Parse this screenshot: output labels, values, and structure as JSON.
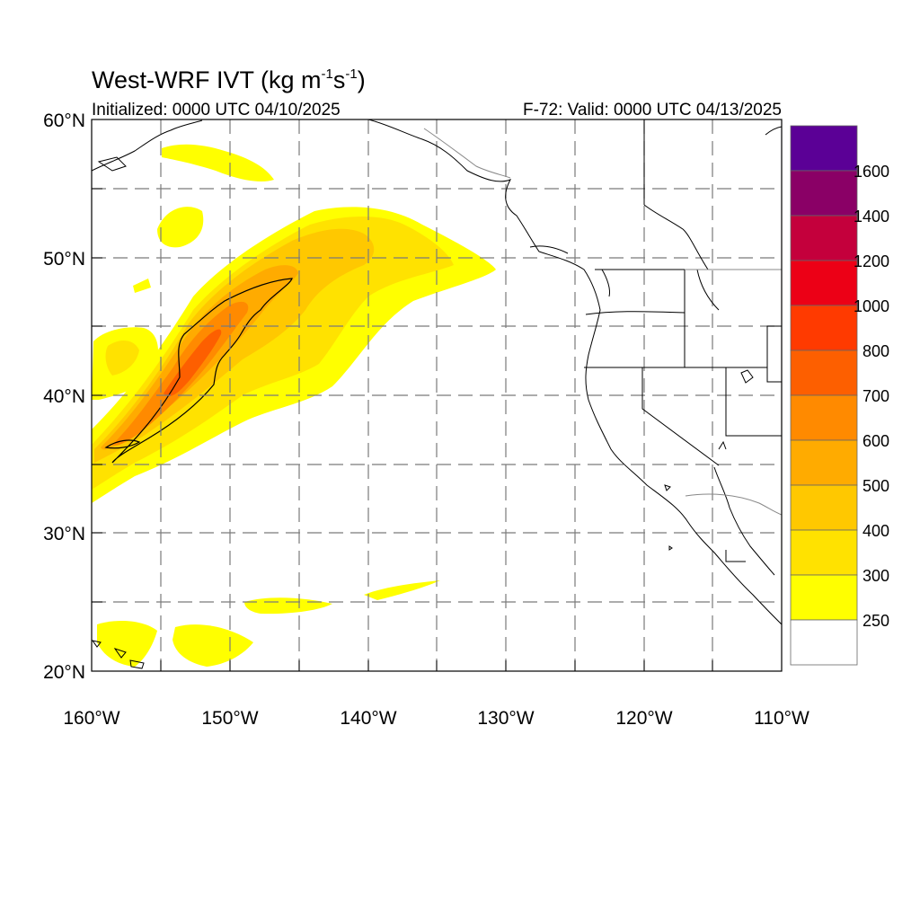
{
  "header": {
    "title": "West-WRF IVT (kg m",
    "title_sup1": "-1",
    "title_mid": "s",
    "title_sup2": "-1",
    "title_end": ")",
    "initialized": "Initialized: 0000 UTC 04/10/2025",
    "valid": "F-72: Valid: 0000 UTC 04/13/2025"
  },
  "map": {
    "lat_labels": [
      "60°N",
      "50°N",
      "40°N",
      "30°N",
      "20°N"
    ],
    "lon_labels": [
      "160°W",
      "150°W",
      "140°W",
      "130°W",
      "120°W",
      "110°W"
    ],
    "lon_range": [
      -160,
      -110
    ],
    "lat_range": [
      20,
      60
    ],
    "grid": "dashed"
  },
  "colorbar": {
    "labels": [
      "1600",
      "1400",
      "1200",
      "1000",
      "800",
      "700",
      "600",
      "500",
      "400",
      "300",
      "250"
    ],
    "colors": [
      "#5b0096",
      "#8a0066",
      "#c4003c",
      "#ec0016",
      "#ff3a00",
      "#fd5f00",
      "#ff8a00",
      "#ffab00",
      "#ffc800",
      "#ffe200",
      "#ffff00",
      "#ffffff"
    ]
  }
}
